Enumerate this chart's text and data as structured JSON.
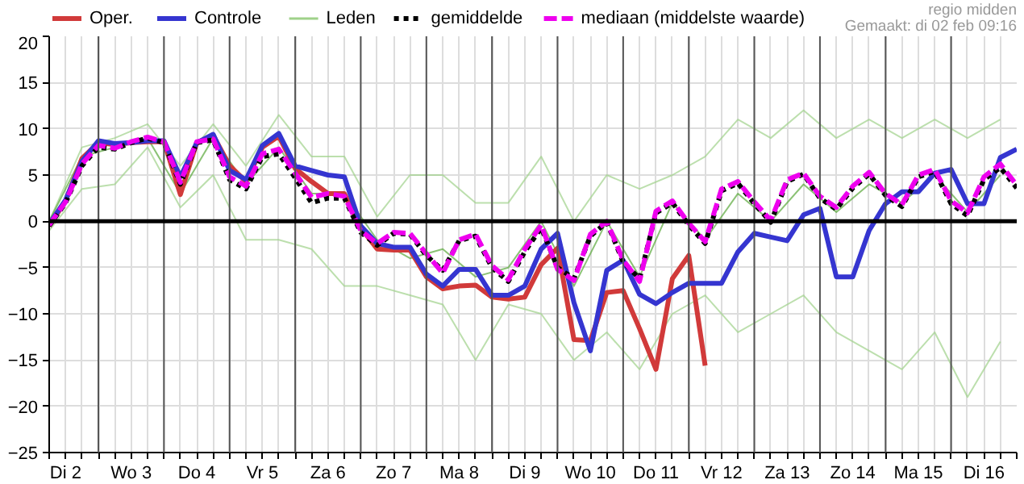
{
  "chart_data": {
    "type": "line",
    "annotations": [
      "regio midden",
      "Gemaakt: di 02 feb 09:16"
    ],
    "categories": [
      null,
      "Di 2",
      null,
      null,
      null,
      "Wo 3",
      null,
      null,
      null,
      "Do 4",
      null,
      null,
      null,
      "Vr 5",
      null,
      null,
      null,
      "Za 6",
      null,
      null,
      null,
      "Zo 7",
      null,
      null,
      null,
      "Ma 8",
      null,
      null,
      null,
      "Di 9",
      null,
      null,
      null,
      "Wo 10",
      null,
      null,
      null,
      "Do 11",
      null,
      null,
      null,
      "Vr 12",
      null,
      null,
      null,
      "Za 13",
      null,
      null,
      null,
      "Zo 14",
      null,
      null,
      null,
      "Ma 15",
      null,
      null,
      null,
      "Di 16",
      null,
      null
    ],
    "ylim": [
      -25,
      20
    ],
    "yticks": [
      -25,
      -20,
      -15,
      -10,
      -5,
      0,
      5,
      10,
      15,
      20
    ],
    "grid": true,
    "legend": "top",
    "ref_lines": [
      {
        "axis": "y",
        "value": 0,
        "color": "#000000"
      }
    ],
    "series": [
      {
        "name": "Oper.",
        "color": "#d13a3a",
        "line_style": "solid",
        "values": [
          -0.5,
          2.2,
          6.8,
          8.5,
          8.3,
          8.5,
          8.6,
          8.6,
          2.9,
          8.5,
          9.3,
          6,
          4.3,
          8,
          9.2,
          5.7,
          4.3,
          3,
          3,
          -0.7,
          -3,
          -3.1,
          -3.1,
          -6,
          -7.3,
          -7,
          -6.9,
          -8.2,
          -8.4,
          -8.2,
          -4.7,
          -2.9,
          -12.8,
          -12.9,
          -7.7,
          -7.5,
          -11.6,
          -16,
          -6.2,
          -3.7,
          -15.6,
          null,
          null,
          null,
          null,
          null,
          null,
          null,
          null,
          null,
          null,
          null,
          null,
          null,
          null,
          null,
          null,
          null,
          null,
          null
        ]
      },
      {
        "name": "Controle",
        "color": "#3535d0",
        "line_style": "solid",
        "values": [
          -0.3,
          2.3,
          6.5,
          8.7,
          8.4,
          8.5,
          8.7,
          8.7,
          4.8,
          8.5,
          9.4,
          5.5,
          4.5,
          8.2,
          9.5,
          6,
          5.5,
          5,
          4.8,
          -0.5,
          -2.4,
          -2.8,
          -2.8,
          -5.7,
          -7,
          -5.2,
          -5.2,
          -8,
          -8,
          -7,
          -3,
          -1.3,
          -8.8,
          -14,
          -5.3,
          -4.2,
          -7.9,
          -8.9,
          -7.7,
          -6.7,
          -6.7,
          -6.7,
          -3.3,
          -1.3,
          -1.7,
          -2.1,
          0.7,
          1.4,
          -6,
          -6,
          -1,
          1.9,
          3.2,
          3.2,
          5.2,
          5.6,
          1.9,
          1.9,
          6.9,
          7.8
        ]
      },
      {
        "name": "Leden",
        "color": "#9fd18a",
        "line_style": "solid",
        "values": [
          0,
          null,
          8,
          null,
          9,
          null,
          10.5,
          null,
          6,
          null,
          10.5,
          null,
          6,
          null,
          11.5,
          null,
          7,
          null,
          7,
          null,
          0.5,
          null,
          5,
          null,
          5,
          null,
          2,
          null,
          2,
          null,
          7,
          null,
          0,
          null,
          5,
          null,
          3.5,
          null,
          5,
          null,
          7,
          null,
          11,
          null,
          9,
          null,
          12,
          null,
          9,
          null,
          11,
          null,
          9,
          null,
          11,
          null,
          9,
          null,
          11,
          null
        ]
      },
      {
        "color": "#9fd18a",
        "line_style": "solid",
        "values": [
          -1,
          null,
          3.5,
          null,
          4,
          null,
          8,
          null,
          1.5,
          null,
          5,
          null,
          -2,
          null,
          -2,
          null,
          -3,
          null,
          -7,
          null,
          -7,
          null,
          -8,
          null,
          -9,
          null,
          -15,
          null,
          -9,
          null,
          -10,
          null,
          -15,
          null,
          -12,
          null,
          -16,
          null,
          -10,
          null,
          -8,
          null,
          -12,
          null,
          -10,
          null,
          -8,
          null,
          -12,
          null,
          -14,
          null,
          -16,
          null,
          -12,
          null,
          -19,
          null,
          -13,
          null
        ]
      },
      {
        "color": "#5aa83a",
        "line_style": "solid",
        "values": [
          0,
          null,
          7,
          null,
          8,
          null,
          9,
          null,
          3,
          null,
          9,
          null,
          4,
          null,
          8,
          null,
          3,
          null,
          3,
          null,
          -2,
          null,
          -4,
          null,
          -3,
          null,
          -6,
          null,
          -5,
          null,
          0,
          null,
          -7,
          null,
          0,
          null,
          -6,
          null,
          2,
          null,
          -2,
          null,
          3,
          null,
          0,
          null,
          4,
          null,
          1,
          null,
          4,
          null,
          2,
          null,
          5,
          null,
          1,
          null,
          5,
          null
        ]
      },
      {
        "name": "gemiddelde",
        "color": "#000000",
        "line_style": "dotted",
        "values": [
          -0.5,
          2,
          6,
          8,
          7.8,
          8.5,
          9,
          8.5,
          4,
          8.5,
          8.8,
          4.5,
          3.5,
          7,
          7.3,
          4.7,
          2,
          2.5,
          2.5,
          -1.2,
          -2.6,
          -1.3,
          -1.4,
          -3.7,
          -5.3,
          -2.1,
          -1.6,
          -5,
          -6.5,
          -3.3,
          -0.7,
          -5,
          -6.2,
          -1.6,
          -0.1,
          -4.4,
          -6.2,
          0.9,
          2,
          -0.4,
          -2.4,
          3.3,
          4.1,
          1.9,
          -0.1,
          4.3,
          5.1,
          2.5,
          1.3,
          3.6,
          5.1,
          2.8,
          1.6,
          4.8,
          5.4,
          1.9,
          0.6,
          4.5,
          5.8,
          3.6
        ]
      },
      {
        "name": "mediaan (middelste waarde)",
        "color": "#ee00ee",
        "line_style": "dashed",
        "values": [
          -0.4,
          2.1,
          6.2,
          8.2,
          7.9,
          8.6,
          9.1,
          8.6,
          4.2,
          8.6,
          8.9,
          4.8,
          3.8,
          7.3,
          7.8,
          5.2,
          2.6,
          3,
          2.7,
          -1,
          -2.4,
          -1.2,
          -1.3,
          -3.5,
          -5.6,
          -2,
          -1.4,
          -4.8,
          -6.3,
          -3,
          -0.4,
          -5.2,
          -6.4,
          -1.4,
          0,
          -4.2,
          -6.5,
          1.1,
          2.2,
          -0.2,
          -2.2,
          3.5,
          4.3,
          2.1,
          0.1,
          4.5,
          5.2,
          2.7,
          1.5,
          3.8,
          5.3,
          3,
          1.8,
          5,
          5.6,
          2.2,
          0.9,
          4.8,
          6.2,
          3.9
        ]
      }
    ]
  }
}
